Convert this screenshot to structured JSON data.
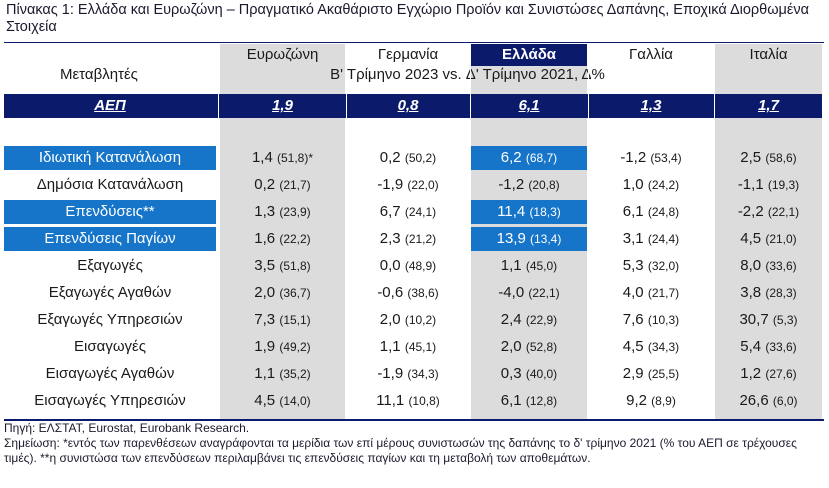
{
  "title": "Πίνακας 1: Ελλάδα και Ευρωζώνη – Πραγματικό Ακαθάριστο Εγχώριο Προϊόν και Συνιστώσες Δαπάνης, Εποχικά Διορθωμένα Στοιχεία",
  "header": {
    "variables": "Μεταβλητές",
    "columns": [
      "Ευρωζώνη",
      "Γερμανία",
      "Ελλάδα",
      "Γαλλία",
      "Ιταλία"
    ],
    "period": "Β' Τρίμηνο 2023 vs. Δ' Τρίμηνο 2021, Δ%"
  },
  "gdp": {
    "label": "ΑΕΠ",
    "values": [
      "1,9",
      "0,8",
      "6,1",
      "1,3",
      "1,7"
    ]
  },
  "rows": [
    {
      "label": "Ιδιωτική Κατανάλωση",
      "highlight": true,
      "cells": [
        [
          "1,4",
          "(51,8)*"
        ],
        [
          "0,2",
          "(50,2)"
        ],
        [
          "6,2",
          "(68,7)"
        ],
        [
          "-1,2",
          "(53,4)"
        ],
        [
          "2,5",
          "(58,6)"
        ]
      ]
    },
    {
      "label": "Δημόσια Κατανάλωση",
      "highlight": false,
      "cells": [
        [
          "0,2",
          "(21,7)"
        ],
        [
          "-1,9",
          "(22,0)"
        ],
        [
          "-1,2",
          "(20,8)"
        ],
        [
          "1,0",
          "(24,2)"
        ],
        [
          "-1,1",
          "(19,3)"
        ]
      ]
    },
    {
      "label": "Επενδύσεις**",
      "highlight": true,
      "cells": [
        [
          "1,3",
          "(23,9)"
        ],
        [
          "6,7",
          "(24,1)"
        ],
        [
          "11,4",
          "(18,3)"
        ],
        [
          "6,1",
          "(24,8)"
        ],
        [
          "-2,2",
          "(22,1)"
        ]
      ]
    },
    {
      "label": "Επενδύσεις Παγίων",
      "highlight": true,
      "cells": [
        [
          "1,6",
          "(22,2)"
        ],
        [
          "2,3",
          "(21,2)"
        ],
        [
          "13,9",
          "(13,4)"
        ],
        [
          "3,1",
          "(24,4)"
        ],
        [
          "4,5",
          "(21,0)"
        ]
      ]
    },
    {
      "label": "Εξαγωγές",
      "highlight": false,
      "cells": [
        [
          "3,5",
          "(51,8)"
        ],
        [
          "0,0",
          "(48,9)"
        ],
        [
          "1,1",
          "(45,0)"
        ],
        [
          "5,3",
          "(32,0)"
        ],
        [
          "8,0",
          "(33,6)"
        ]
      ]
    },
    {
      "label": "Εξαγωγές Αγαθών",
      "highlight": false,
      "cells": [
        [
          "2,0",
          "(36,7)"
        ],
        [
          "-0,6",
          "(38,6)"
        ],
        [
          "-4,0",
          "(22,1)"
        ],
        [
          "4,0",
          "(21,7)"
        ],
        [
          "3,8",
          "(28,3)"
        ]
      ]
    },
    {
      "label": "Εξαγωγές Υπηρεσιών",
      "highlight": false,
      "cells": [
        [
          "7,3",
          "(15,1)"
        ],
        [
          "2,0",
          "(10,2)"
        ],
        [
          "2,4",
          "(22,9)"
        ],
        [
          "7,6",
          "(10,3)"
        ],
        [
          "30,7",
          "(5,3)"
        ]
      ]
    },
    {
      "label": "Εισαγωγές",
      "highlight": false,
      "cells": [
        [
          "1,9",
          "(49,2)"
        ],
        [
          "1,1",
          "(45,1)"
        ],
        [
          "2,0",
          "(52,8)"
        ],
        [
          "4,5",
          "(34,3)"
        ],
        [
          "5,4",
          "(33,6)"
        ]
      ]
    },
    {
      "label": "Εισαγωγές Αγαθών",
      "highlight": false,
      "cells": [
        [
          "1,1",
          "(35,2)"
        ],
        [
          "-1,9",
          "(34,3)"
        ],
        [
          "0,3",
          "(40,0)"
        ],
        [
          "2,9",
          "(25,5)"
        ],
        [
          "1,2",
          "(27,6)"
        ]
      ]
    },
    {
      "label": "Εισαγωγές Υπηρεσιών",
      "highlight": false,
      "cells": [
        [
          "4,5",
          "(14,0)"
        ],
        [
          "11,1",
          "(10,8)"
        ],
        [
          "6,1",
          "(12,8)"
        ],
        [
          "9,2",
          "(8,9)"
        ],
        [
          "26,6",
          "(6,0)"
        ]
      ]
    }
  ],
  "notes": {
    "source": "Πηγή: ΕΛΣΤΑΤ, Eurostat, Eurobank Research.",
    "remark": "Σημείωση: *εντός των παρενθέσεων αναγράφονται τα μερίδια των επί μέρους συνιστωσών της δαπάνης το δ' τρίμηνο 2021 (% του ΑΕΠ σε τρέχουσες τιμές). **η συνιστώσα των επενδύσεων περιλαμβάνει τις επενδύσεις παγίων και τη μεταβολή των αποθεμάτων."
  },
  "colors": {
    "navy": "#0b1a6b",
    "highlight_blue": "#1675c9",
    "shade": "#dcdcdc"
  }
}
